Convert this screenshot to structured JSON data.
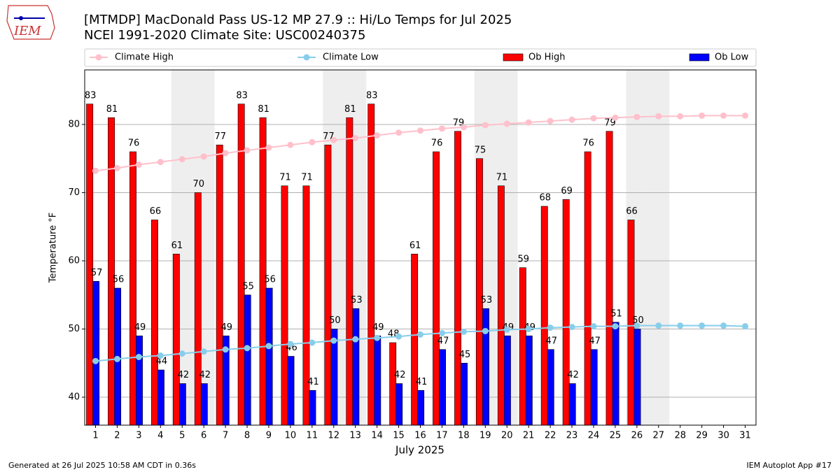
{
  "chart_data": {
    "type": "bar",
    "title": "[MTMDP] MacDonald Pass US-12 MP 27.9  :: Hi/Lo Temps for Jul 2025",
    "subtitle": "NCEI 1991-2020 Climate Site: USC00240375",
    "logo_text": "IEM",
    "x_label": "July 2025",
    "y_label": "Temperature °F",
    "footer_left": "Generated at 26 Jul 2025 10:58 AM CDT in 0.36s",
    "footer_right": "IEM Autoplot App #17",
    "categories": [
      "1",
      "2",
      "3",
      "4",
      "5",
      "6",
      "7",
      "8",
      "9",
      "10",
      "11",
      "12",
      "13",
      "14",
      "15",
      "16",
      "17",
      "18",
      "19",
      "20",
      "21",
      "22",
      "23",
      "24",
      "25",
      "26",
      "27",
      "28",
      "29",
      "30",
      "31"
    ],
    "shaded_days": [
      5,
      6,
      12,
      13,
      19,
      20,
      26,
      27
    ],
    "shade_color": "#eeeeee",
    "series": [
      {
        "name": "Climate High",
        "kind": "line",
        "color": "#ffc0cb",
        "values": [
          73.2,
          73.6,
          74.1,
          74.5,
          74.9,
          75.3,
          75.8,
          76.2,
          76.6,
          77.0,
          77.4,
          77.7,
          78.0,
          78.4,
          78.8,
          79.1,
          79.4,
          79.6,
          79.9,
          80.1,
          80.3,
          80.5,
          80.7,
          80.9,
          81.0,
          81.1,
          81.2,
          81.2,
          81.3,
          81.3,
          81.3
        ]
      },
      {
        "name": "Climate Low",
        "kind": "line",
        "color": "#87ceeb",
        "values": [
          45.3,
          45.6,
          45.9,
          46.1,
          46.4,
          46.7,
          47.0,
          47.2,
          47.5,
          47.8,
          48.0,
          48.3,
          48.5,
          48.7,
          48.9,
          49.2,
          49.4,
          49.6,
          49.7,
          49.9,
          50.0,
          50.2,
          50.3,
          50.4,
          50.4,
          50.5,
          50.5,
          50.5,
          50.5,
          50.5,
          50.4
        ]
      },
      {
        "name": "Ob High",
        "kind": "bar",
        "color": "#ff0000",
        "values": [
          83,
          81,
          76,
          66,
          61,
          70,
          77,
          83,
          81,
          71,
          71,
          77,
          81,
          83,
          48,
          61,
          76,
          79,
          75,
          71,
          59,
          68,
          69,
          76,
          79,
          66,
          null,
          null,
          null,
          null,
          null
        ]
      },
      {
        "name": "Ob Low",
        "kind": "bar",
        "color": "#0000ff",
        "values": [
          57,
          56,
          49,
          44,
          42,
          42,
          49,
          55,
          56,
          46,
          41,
          50,
          53,
          49,
          42,
          41,
          47,
          45,
          53,
          49,
          49,
          47,
          42,
          47,
          51,
          50,
          null,
          null,
          null,
          null,
          null
        ]
      }
    ],
    "ylim": [
      35.9,
      88
    ],
    "yticks": [
      40,
      50,
      60,
      70,
      80
    ],
    "grid": true
  }
}
